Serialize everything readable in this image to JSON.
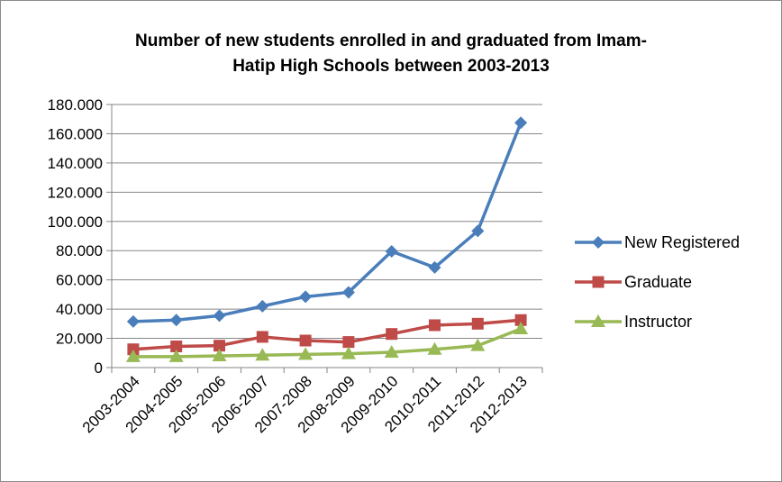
{
  "chart_data": {
    "type": "line",
    "title_lines": [
      "Number of new students enrolled in and graduated from Imam-",
      "Hatip High Schools between 2003-2013"
    ],
    "categories": [
      "2003-2004",
      "2004-2005",
      "2005-2006",
      "2006-2007",
      "2007-2008",
      "2008-2009",
      "2009-2010",
      "2010-2011",
      "2011-2012",
      "2012-2013"
    ],
    "series": [
      {
        "name": "New Registered",
        "color": "#4A7EBB",
        "marker": "diamond",
        "values": [
          31500,
          32500,
          35500,
          42000,
          48500,
          51500,
          79500,
          68500,
          93500,
          167500
        ]
      },
      {
        "name": "Graduate",
        "color": "#BE4B48",
        "marker": "square",
        "values": [
          12500,
          14500,
          15000,
          21000,
          18500,
          17500,
          23000,
          29000,
          30000,
          32500
        ]
      },
      {
        "name": "Instructor",
        "color": "#98B954",
        "marker": "triangle",
        "values": [
          7500,
          7500,
          8000,
          8500,
          9000,
          9500,
          10500,
          12500,
          15000,
          26500
        ]
      }
    ],
    "yticks": [
      0,
      20000,
      40000,
      60000,
      80000,
      100000,
      120000,
      140000,
      160000,
      180000
    ],
    "ytick_labels": [
      "0",
      "20.000",
      "40.000",
      "60.000",
      "80.000",
      "100.000",
      "120.000",
      "140.000",
      "160.000",
      "180.000"
    ],
    "ylim": [
      0,
      180000
    ],
    "grid": true,
    "legend_position": "right"
  }
}
